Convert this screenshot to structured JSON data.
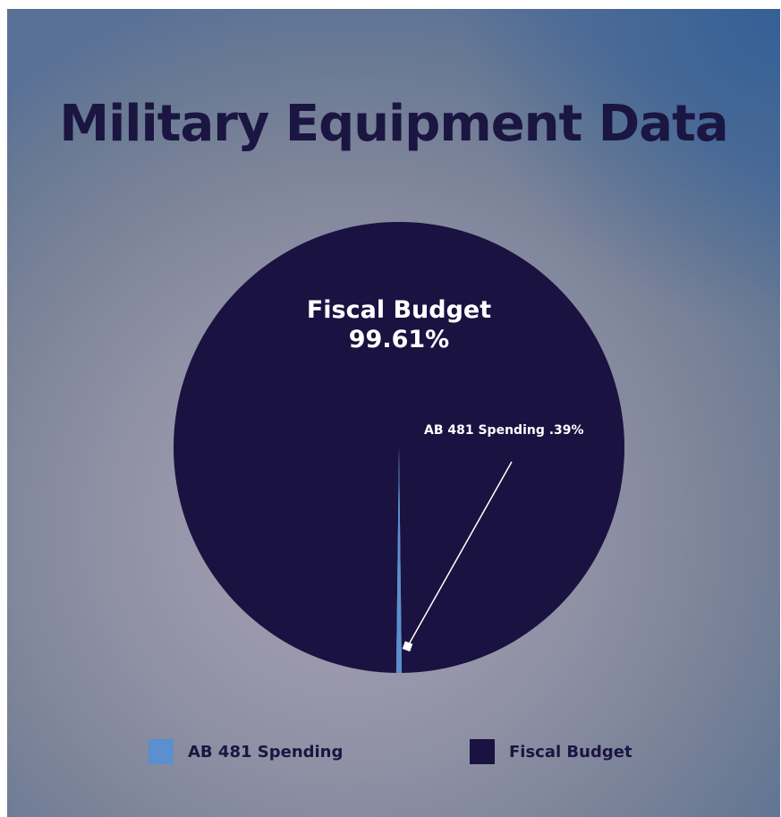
{
  "chart_data": {
    "type": "pie",
    "title": "Military Equipment Data",
    "slices": [
      {
        "name": "AB 481 Spending",
        "value": 0.39,
        "label": "AB 481 Spending .39%",
        "color": "#5b8fcd"
      },
      {
        "name": "Fiscal Budget",
        "value": 99.61,
        "label_line1": "Fiscal Budget",
        "label_line2": "99.61%",
        "color": "#1a1240"
      }
    ],
    "legend": {
      "position": "bottom",
      "items": [
        {
          "label": "AB 481 Spending",
          "color": "#5b8fcd"
        },
        {
          "label": "Fiscal Budget",
          "color": "#1a1240"
        }
      ]
    }
  }
}
